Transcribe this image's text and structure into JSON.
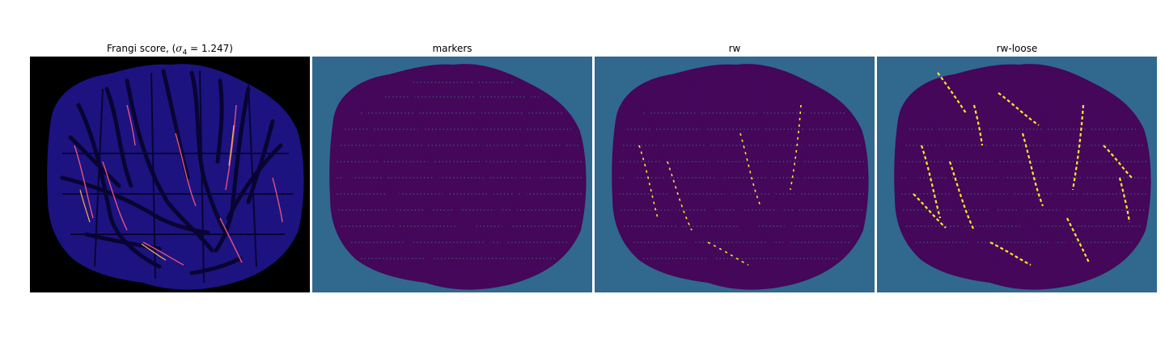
{
  "panels": [
    {
      "id": "frangi",
      "title_prefix": "Frangi score, (",
      "sigma_symbol": "σ",
      "sigma_subscript": "4",
      "title_equals": " = 1.247)",
      "background": "#000000",
      "fill": "#1c1380"
    },
    {
      "id": "markers",
      "title": "markers",
      "background": "#31688e",
      "fill": "#44075a"
    },
    {
      "id": "rw",
      "title": "rw",
      "background": "#31688e",
      "fill": "#44075a"
    },
    {
      "id": "rw-loose",
      "title": "rw-loose",
      "background": "#31688e",
      "fill": "#44075a"
    }
  ],
  "colors": {
    "frangi_vessel": "#090432",
    "frangi_hot": "#e8507a",
    "frangi_hot2": "#f5b942",
    "viridis_dark": "#44075a",
    "viridis_teal": "#2ab07f",
    "viridis_yellow": "#fde725",
    "viridis_bg": "#31688e"
  }
}
